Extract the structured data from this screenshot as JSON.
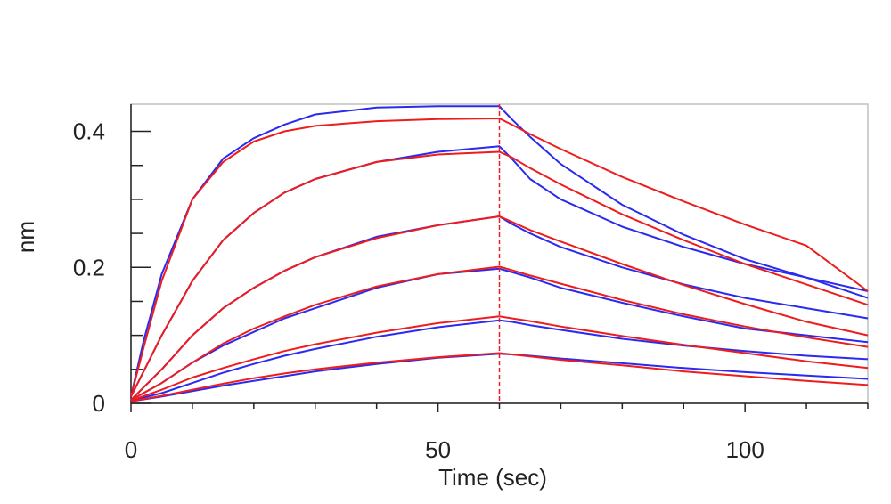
{
  "chart_data": {
    "type": "line",
    "xlabel": "Time (sec)",
    "ylabel": "nm",
    "xlim": [
      0,
      120
    ],
    "ylim": [
      0,
      0.44
    ],
    "x_ticks": [
      {
        "value": 0,
        "label": "0"
      },
      {
        "value": 50,
        "label": "50"
      },
      {
        "value": 100,
        "label": "100"
      }
    ],
    "y_ticks": [
      {
        "value": 0,
        "label": "0"
      },
      {
        "value": 0.2,
        "label": "0.2"
      },
      {
        "value": 0.4,
        "label": "0.4"
      }
    ],
    "dissociation_start": 60,
    "colors": {
      "measured": "#2a2af0",
      "fitted": "#ee1c1c",
      "marker": "#ee1c1c",
      "frame": "#c0c0c0",
      "axis": "#222222"
    },
    "series": [
      {
        "color": "#2a2af0",
        "x": [
          0,
          2,
          5,
          10,
          15,
          20,
          25,
          30,
          40,
          50,
          60,
          62,
          65,
          70,
          80,
          90,
          100,
          110,
          120
        ],
        "y": [
          0.01,
          0.09,
          0.19,
          0.3,
          0.36,
          0.39,
          0.41,
          0.425,
          0.435,
          0.437,
          0.437,
          0.418,
          0.392,
          0.352,
          0.292,
          0.248,
          0.212,
          0.185,
          0.165
        ]
      },
      {
        "color": "#ee1c1c",
        "x": [
          0,
          2,
          5,
          10,
          15,
          20,
          25,
          30,
          40,
          50,
          60,
          62,
          65,
          70,
          80,
          90,
          100,
          110,
          120
        ],
        "y": [
          0.01,
          0.08,
          0.18,
          0.3,
          0.355,
          0.385,
          0.4,
          0.408,
          0.415,
          0.418,
          0.419,
          0.41,
          0.396,
          0.374,
          0.333,
          0.297,
          0.263,
          0.232,
          0.165
        ]
      },
      {
        "color": "#2a2af0",
        "x": [
          0,
          5,
          10,
          15,
          20,
          25,
          30,
          40,
          50,
          60,
          62,
          65,
          70,
          80,
          90,
          100,
          110,
          120
        ],
        "y": [
          0.01,
          0.1,
          0.18,
          0.24,
          0.28,
          0.31,
          0.33,
          0.355,
          0.37,
          0.378,
          0.36,
          0.33,
          0.3,
          0.26,
          0.23,
          0.205,
          0.185,
          0.155
        ]
      },
      {
        "color": "#ee1c1c",
        "x": [
          0,
          5,
          10,
          15,
          20,
          25,
          30,
          40,
          50,
          60,
          62,
          65,
          70,
          80,
          90,
          100,
          110,
          120
        ],
        "y": [
          0.01,
          0.1,
          0.18,
          0.24,
          0.28,
          0.31,
          0.33,
          0.355,
          0.366,
          0.37,
          0.362,
          0.346,
          0.322,
          0.278,
          0.24,
          0.205,
          0.175,
          0.145
        ]
      },
      {
        "color": "#2a2af0",
        "x": [
          0,
          5,
          10,
          15,
          20,
          25,
          30,
          40,
          50,
          60,
          62,
          65,
          70,
          80,
          90,
          100,
          110,
          120
        ],
        "y": [
          0.005,
          0.05,
          0.1,
          0.14,
          0.17,
          0.195,
          0.215,
          0.245,
          0.262,
          0.275,
          0.264,
          0.25,
          0.23,
          0.2,
          0.175,
          0.155,
          0.14,
          0.125
        ]
      },
      {
        "color": "#ee1c1c",
        "x": [
          0,
          5,
          10,
          15,
          20,
          25,
          30,
          40,
          50,
          60,
          62,
          65,
          70,
          80,
          90,
          100,
          110,
          120
        ],
        "y": [
          0.005,
          0.05,
          0.1,
          0.14,
          0.17,
          0.195,
          0.215,
          0.243,
          0.262,
          0.275,
          0.267,
          0.255,
          0.238,
          0.205,
          0.174,
          0.146,
          0.12,
          0.1
        ]
      },
      {
        "color": "#2a2af0",
        "x": [
          0,
          5,
          10,
          15,
          20,
          25,
          30,
          40,
          50,
          60,
          62,
          65,
          70,
          80,
          90,
          100,
          110,
          120
        ],
        "y": [
          0.005,
          0.03,
          0.06,
          0.085,
          0.105,
          0.125,
          0.14,
          0.17,
          0.19,
          0.198,
          0.193,
          0.185,
          0.17,
          0.148,
          0.128,
          0.11,
          0.1,
          0.09
        ]
      },
      {
        "color": "#ee1c1c",
        "x": [
          0,
          5,
          10,
          15,
          20,
          25,
          30,
          40,
          50,
          60,
          62,
          65,
          70,
          80,
          90,
          100,
          110,
          120
        ],
        "y": [
          0.005,
          0.03,
          0.06,
          0.088,
          0.11,
          0.128,
          0.145,
          0.172,
          0.19,
          0.201,
          0.196,
          0.188,
          0.176,
          0.152,
          0.131,
          0.113,
          0.097,
          0.083
        ]
      },
      {
        "color": "#2a2af0",
        "x": [
          0,
          5,
          10,
          15,
          20,
          25,
          30,
          40,
          50,
          60,
          62,
          65,
          70,
          80,
          90,
          100,
          110,
          120
        ],
        "y": [
          0.004,
          0.015,
          0.03,
          0.045,
          0.058,
          0.07,
          0.08,
          0.098,
          0.112,
          0.122,
          0.12,
          0.115,
          0.108,
          0.095,
          0.085,
          0.077,
          0.07,
          0.065
        ]
      },
      {
        "color": "#ee1c1c",
        "x": [
          0,
          5,
          10,
          15,
          20,
          25,
          30,
          40,
          50,
          60,
          62,
          65,
          70,
          80,
          90,
          100,
          110,
          120
        ],
        "y": [
          0.004,
          0.02,
          0.038,
          0.052,
          0.065,
          0.077,
          0.087,
          0.104,
          0.118,
          0.128,
          0.125,
          0.121,
          0.113,
          0.099,
          0.086,
          0.074,
          0.062,
          0.052
        ]
      },
      {
        "color": "#2a2af0",
        "x": [
          0,
          5,
          10,
          15,
          20,
          25,
          30,
          40,
          50,
          60,
          62,
          65,
          70,
          80,
          90,
          100,
          110,
          120
        ],
        "y": [
          0.003,
          0.01,
          0.018,
          0.026,
          0.033,
          0.04,
          0.047,
          0.058,
          0.067,
          0.073,
          0.072,
          0.07,
          0.066,
          0.059,
          0.052,
          0.046,
          0.041,
          0.036
        ]
      },
      {
        "color": "#ee1c1c",
        "x": [
          0,
          5,
          10,
          15,
          20,
          25,
          30,
          40,
          50,
          60,
          62,
          65,
          70,
          80,
          90,
          100,
          110,
          120
        ],
        "y": [
          0.003,
          0.011,
          0.02,
          0.029,
          0.037,
          0.044,
          0.05,
          0.06,
          0.068,
          0.074,
          0.072,
          0.069,
          0.064,
          0.056,
          0.047,
          0.04,
          0.033,
          0.027
        ]
      }
    ]
  }
}
